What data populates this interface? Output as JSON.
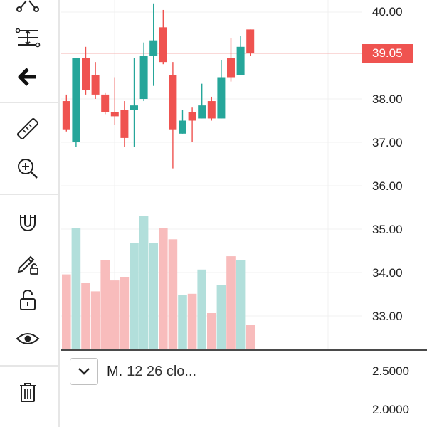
{
  "toolbar": {
    "tools": [
      "node-tool-icon",
      "fib-retracement-icon",
      "back-arrow-icon",
      "ruler-icon",
      "zoom-in-icon",
      "magnet-icon",
      "pencil-lock-icon",
      "unlock-icon",
      "eye-icon",
      "trash-icon"
    ]
  },
  "price_axis": {
    "ticks": [
      "40.00",
      "38.00",
      "37.00",
      "36.00",
      "35.00",
      "34.00",
      "33.00"
    ],
    "last_price": "39.05",
    "indicator_ticks": [
      "2.5000",
      "2.0000"
    ]
  },
  "indicator": {
    "name": "M.",
    "params": "12 26 clo..."
  },
  "colors": {
    "up": "#26a69a",
    "down": "#ef5350",
    "up_volume": "#b2dfdb",
    "down_volume": "#f8bcbc"
  },
  "chart_data": {
    "type": "candlestick",
    "price_scale": [
      33,
      40
    ],
    "last_price": 39.05,
    "candles": [
      {
        "o": 37.95,
        "h": 38.1,
        "l": 37.25,
        "c": 37.3
      },
      {
        "o": 37.0,
        "h": 38.95,
        "l": 36.9,
        "c": 38.95
      },
      {
        "o": 38.95,
        "h": 39.2,
        "l": 38.1,
        "c": 38.2
      },
      {
        "o": 38.55,
        "h": 38.85,
        "l": 38.0,
        "c": 38.1
      },
      {
        "o": 38.1,
        "h": 38.15,
        "l": 37.65,
        "c": 37.7
      },
      {
        "o": 37.7,
        "h": 38.5,
        "l": 37.4,
        "c": 37.6
      },
      {
        "o": 37.75,
        "h": 37.95,
        "l": 36.9,
        "c": 37.1
      },
      {
        "o": 37.75,
        "h": 38.95,
        "l": 36.9,
        "c": 37.85
      },
      {
        "o": 38.0,
        "h": 39.3,
        "l": 37.95,
        "c": 39.0
      },
      {
        "o": 39.0,
        "h": 40.2,
        "l": 38.3,
        "c": 39.35
      },
      {
        "o": 39.65,
        "h": 40.05,
        "l": 38.8,
        "c": 38.85
      },
      {
        "o": 38.55,
        "h": 38.85,
        "l": 36.4,
        "c": 37.3
      },
      {
        "o": 37.2,
        "h": 37.75,
        "l": 37.2,
        "c": 37.5
      },
      {
        "o": 37.7,
        "h": 37.8,
        "l": 37.0,
        "c": 37.5
      },
      {
        "o": 37.55,
        "h": 38.35,
        "l": 37.55,
        "c": 37.85
      },
      {
        "o": 37.95,
        "h": 38.05,
        "l": 37.5,
        "c": 37.55
      },
      {
        "o": 37.55,
        "h": 38.9,
        "l": 37.55,
        "c": 38.5
      },
      {
        "o": 38.95,
        "h": 39.4,
        "l": 38.4,
        "c": 38.5
      },
      {
        "o": 38.55,
        "h": 39.45,
        "l": 38.55,
        "c": 39.2
      },
      {
        "o": 39.6,
        "h": 39.6,
        "l": 39.0,
        "c": 39.05
      }
    ],
    "volume": [
      0.62,
      1.0,
      0.55,
      0.48,
      0.74,
      0.57,
      0.6,
      0.88,
      1.1,
      0.88,
      1.0,
      0.91,
      0.45,
      0.46,
      0.66,
      0.3,
      0.53,
      0.77,
      0.74,
      0.2
    ]
  }
}
